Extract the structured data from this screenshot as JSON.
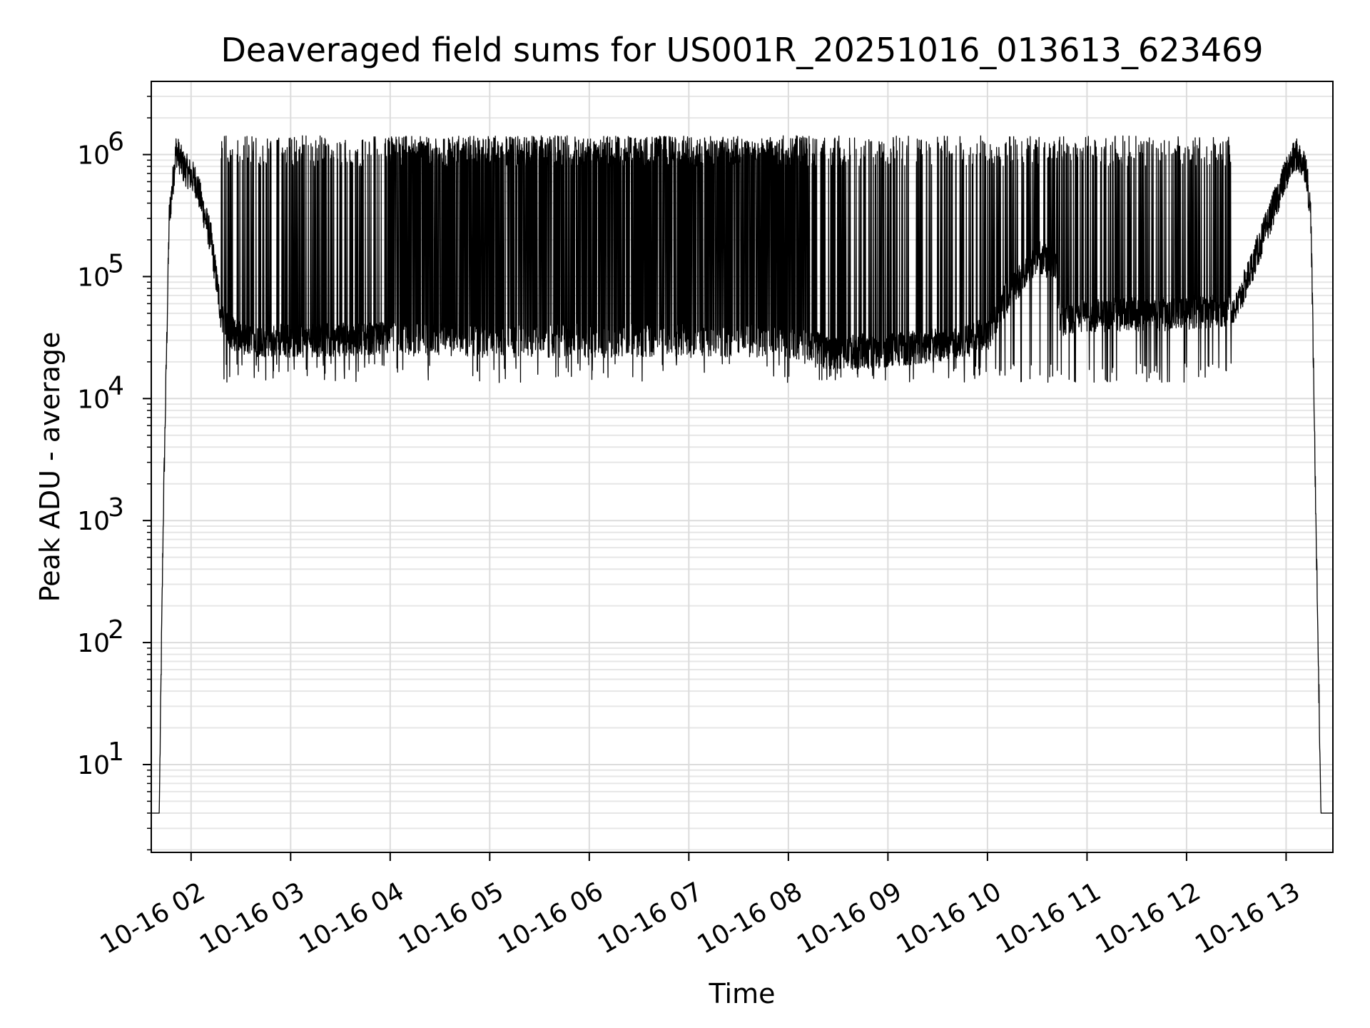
{
  "chart_data": {
    "type": "line",
    "title": "Deaveraged field sums for US001R_20251016_013613_623469",
    "xlabel": "Time",
    "ylabel": "Peak ADU - average",
    "yscale": "log",
    "xlim": [
      1.6,
      13.47
    ],
    "ylim_log10": [
      0.28,
      6.6
    ],
    "grid": true,
    "x_ticks": [
      {
        "value": 2,
        "label": "10-16 02"
      },
      {
        "value": 3,
        "label": "10-16 03"
      },
      {
        "value": 4,
        "label": "10-16 04"
      },
      {
        "value": 5,
        "label": "10-16 05"
      },
      {
        "value": 6,
        "label": "10-16 06"
      },
      {
        "value": 7,
        "label": "10-16 07"
      },
      {
        "value": 8,
        "label": "10-16 08"
      },
      {
        "value": 9,
        "label": "10-16 09"
      },
      {
        "value": 10,
        "label": "10-16 10"
      },
      {
        "value": 11,
        "label": "10-16 11"
      },
      {
        "value": 12,
        "label": "10-16 12"
      },
      {
        "value": 13,
        "label": "10-16 13"
      }
    ],
    "y_ticks": [
      {
        "exp": 1,
        "label": "10",
        "sup": "1"
      },
      {
        "exp": 2,
        "label": "10",
        "sup": "2"
      },
      {
        "exp": 3,
        "label": "10",
        "sup": "3"
      },
      {
        "exp": 4,
        "label": "10",
        "sup": "4"
      },
      {
        "exp": 5,
        "label": "10",
        "sup": "5"
      },
      {
        "exp": 6,
        "label": "10",
        "sup": "6"
      }
    ],
    "series": [
      {
        "name": "field sums",
        "color": "#000000",
        "envelope_x": [
          1.6,
          1.68,
          1.72,
          1.78,
          1.85,
          1.92,
          2.05,
          2.2,
          2.3,
          2.4,
          2.6,
          3.0,
          4.0,
          5.0,
          6.0,
          7.0,
          8.0,
          8.4,
          9.0,
          9.6,
          10.0,
          10.2,
          10.5,
          10.7,
          10.72,
          11.0,
          12.0,
          12.5,
          12.8,
          13.0,
          13.1,
          13.2,
          13.25,
          13.3,
          13.35,
          13.47
        ],
        "envelope_baseline": [
          4,
          4,
          1000,
          300000,
          1100000,
          800000,
          600000,
          200000,
          50000,
          35000,
          30000,
          30000,
          31000,
          30000,
          30000,
          30000,
          30000,
          24000,
          25000,
          28000,
          33000,
          70000,
          150000,
          120000,
          45000,
          48000,
          50000,
          55000,
          250000,
          700000,
          1000000,
          800000,
          300000,
          1000,
          4,
          4
        ],
        "spike_region": [
          2.3,
          12.45
        ],
        "spike_peak": 1200000,
        "spike_trough": 15000
      }
    ]
  }
}
